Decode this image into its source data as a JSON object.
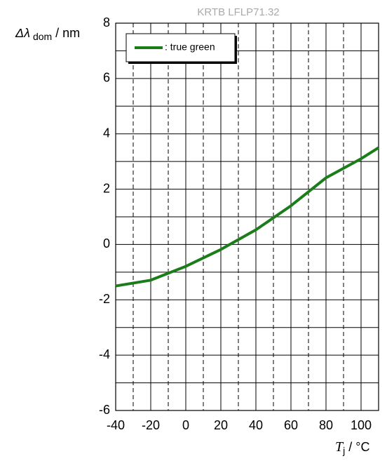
{
  "chart_data": {
    "type": "line",
    "title": "KRTB LFLP71.32",
    "ylabel": {
      "symbol": "Δλ",
      "subscript": "dom",
      "unit": "/ nm"
    },
    "xlabel": {
      "symbol": "T",
      "subscript": "j",
      "unit": "/ °C"
    },
    "x": [
      -40,
      -20,
      0,
      20,
      40,
      60,
      80,
      100,
      110
    ],
    "series": [
      {
        "name": ": true green",
        "color": "#1a7d1a",
        "values": [
          -1.5,
          -1.29,
          -0.79,
          -0.18,
          0.53,
          1.4,
          2.41,
          3.1,
          3.5
        ]
      }
    ],
    "xlim": [
      -40,
      110
    ],
    "xticks": [
      -40,
      -20,
      0,
      20,
      40,
      60,
      80,
      100
    ],
    "x_minor_grid": [
      -30,
      -10,
      10,
      30,
      50,
      70,
      90,
      110
    ],
    "ylim": [
      -6,
      8
    ],
    "yticks": [
      -6,
      -4,
      -2,
      0,
      2,
      4,
      6,
      8
    ],
    "y_minor_grid": [
      -5,
      -3,
      -1,
      1,
      3,
      5,
      7
    ],
    "grid": true,
    "legend": "upper left"
  }
}
